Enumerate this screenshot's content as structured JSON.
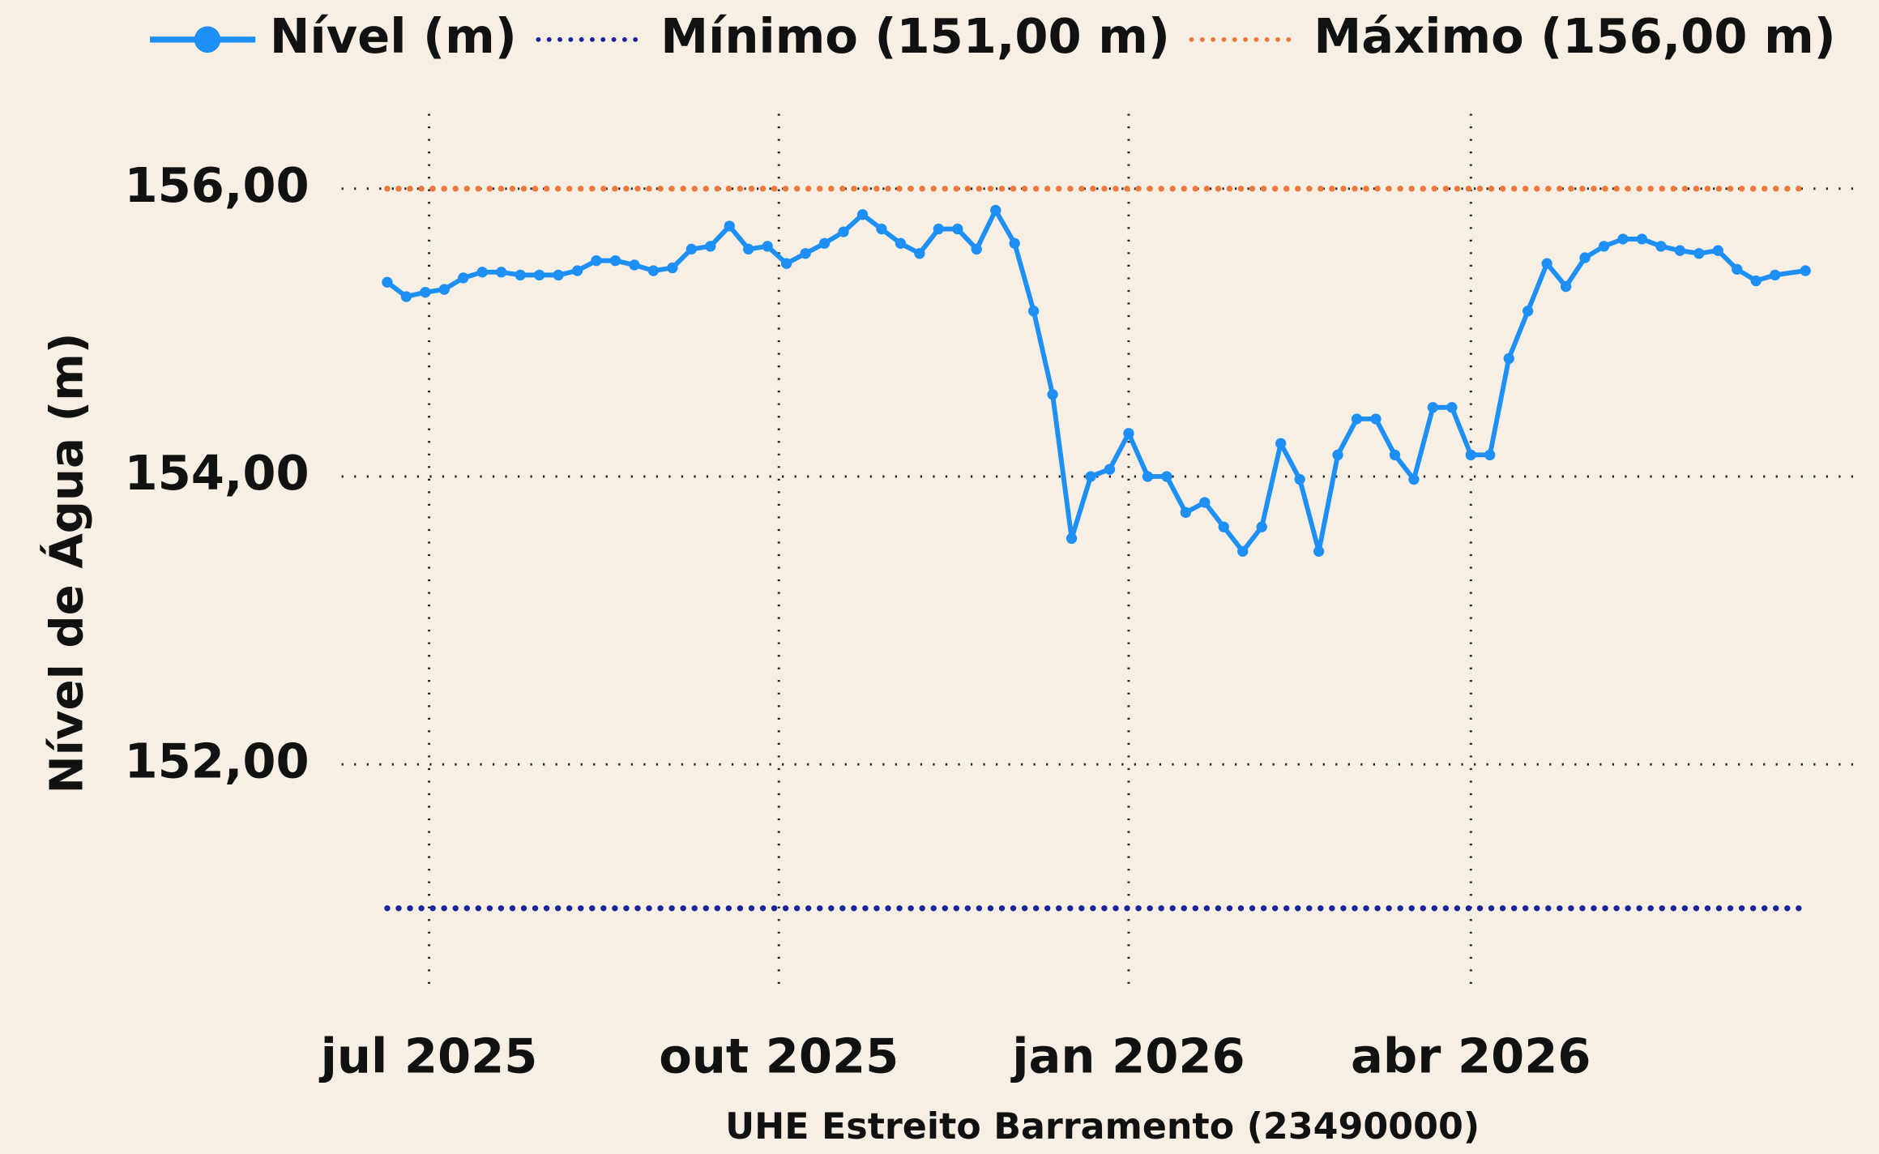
{
  "chart_data": {
    "type": "line",
    "x_label": "UHE Estreito Barramento (23490000)",
    "y_label": "Nível de Água (m)",
    "x": [
      "2025-06-20",
      "2025-06-25",
      "2025-06-30",
      "2025-07-05",
      "2025-07-10",
      "2025-07-15",
      "2025-07-20",
      "2025-07-25",
      "2025-07-30",
      "2025-08-04",
      "2025-08-09",
      "2025-08-14",
      "2025-08-19",
      "2025-08-24",
      "2025-08-29",
      "2025-09-03",
      "2025-09-08",
      "2025-09-13",
      "2025-09-18",
      "2025-09-23",
      "2025-09-28",
      "2025-10-03",
      "2025-10-08",
      "2025-10-13",
      "2025-10-18",
      "2025-10-23",
      "2025-10-28",
      "2025-11-02",
      "2025-11-07",
      "2025-11-12",
      "2025-11-17",
      "2025-11-22",
      "2025-11-27",
      "2025-12-02",
      "2025-12-07",
      "2025-12-12",
      "2025-12-17",
      "2025-12-22",
      "2025-12-27",
      "2026-01-01",
      "2026-01-06",
      "2026-01-11",
      "2026-01-16",
      "2026-01-21",
      "2026-01-26",
      "2026-01-31",
      "2026-02-05",
      "2026-02-10",
      "2026-02-15",
      "2026-02-20",
      "2026-02-25",
      "2026-03-02",
      "2026-03-07",
      "2026-03-12",
      "2026-03-17",
      "2026-03-22",
      "2026-03-27",
      "2026-04-01",
      "2026-04-06",
      "2026-04-11",
      "2026-04-16",
      "2026-04-21",
      "2026-04-26",
      "2026-05-01",
      "2026-05-06",
      "2026-05-11",
      "2026-05-16",
      "2026-05-21",
      "2026-05-26",
      "2026-05-31",
      "2026-06-05",
      "2026-06-10",
      "2026-06-15",
      "2026-06-20",
      "2026-06-28"
    ],
    "series": [
      {
        "name": "Nível (m)",
        "color": "#1e90f5",
        "values": [
          155.35,
          155.25,
          155.28,
          155.3,
          155.38,
          155.42,
          155.42,
          155.4,
          155.4,
          155.4,
          155.43,
          155.5,
          155.5,
          155.47,
          155.43,
          155.45,
          155.58,
          155.6,
          155.74,
          155.58,
          155.6,
          155.48,
          155.55,
          155.62,
          155.7,
          155.82,
          155.72,
          155.62,
          155.55,
          155.72,
          155.72,
          155.58,
          155.85,
          155.62,
          155.15,
          154.57,
          153.57,
          154.0,
          154.05,
          154.3,
          154.0,
          154.0,
          153.75,
          153.82,
          153.65,
          153.48,
          153.65,
          154.23,
          153.98,
          153.48,
          154.15,
          154.4,
          154.4,
          154.15,
          153.98,
          154.48,
          154.48,
          154.15,
          154.15,
          154.82,
          155.15,
          155.48,
          155.32,
          155.52,
          155.6,
          155.65,
          155.65,
          155.6,
          155.57,
          155.55,
          155.57,
          155.44,
          155.36,
          155.4,
          155.43
        ]
      }
    ],
    "reference_lines": [
      {
        "name": "Mínimo (151,00 m)",
        "value": 151,
        "color": "#1a259a"
      },
      {
        "name": "Máximo (156,00 m)",
        "value": 156,
        "color": "#ec7a3c"
      }
    ],
    "xlim": [
      "2025-06-08",
      "2026-07-11"
    ],
    "xticks": [
      {
        "value": "2025-07-01",
        "label": "jul 2025"
      },
      {
        "value": "2025-10-01",
        "label": "out 2025"
      },
      {
        "value": "2026-01-01",
        "label": "jan 2026"
      },
      {
        "value": "2026-04-01",
        "label": "abr 2026"
      }
    ],
    "ylim": [
      150.4,
      156.52
    ],
    "yticks": [
      {
        "value": 152,
        "label": "152,00"
      },
      {
        "value": 154,
        "label": "154,00"
      },
      {
        "value": 156,
        "label": "156,00"
      }
    ],
    "grid": true,
    "legend": "top"
  }
}
